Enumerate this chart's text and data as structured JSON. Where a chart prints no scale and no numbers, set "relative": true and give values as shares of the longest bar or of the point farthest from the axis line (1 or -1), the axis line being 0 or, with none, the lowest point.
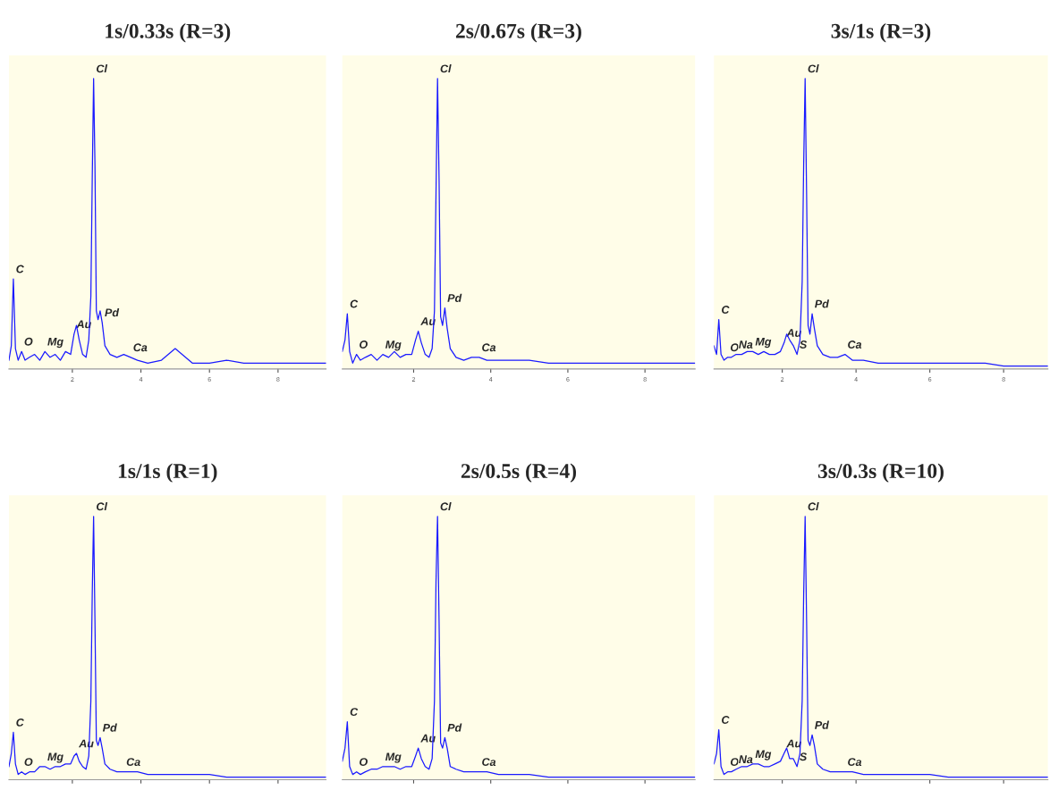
{
  "chart_data": [
    {
      "type": "line",
      "title": "1s/0.33s (R=3)",
      "relative": true,
      "tick_labels": "x",
      "xlim": [
        0.15,
        9.4
      ],
      "xticks": [
        2,
        4,
        6,
        8
      ],
      "x": [
        0.15,
        0.22,
        0.28,
        0.34,
        0.42,
        0.52,
        0.62,
        0.75,
        0.9,
        1.05,
        1.2,
        1.35,
        1.5,
        1.65,
        1.8,
        1.95,
        2.05,
        2.12,
        2.2,
        2.3,
        2.4,
        2.48,
        2.54,
        2.58,
        2.62,
        2.66,
        2.7,
        2.75,
        2.81,
        2.87,
        2.95,
        3.1,
        3.3,
        3.5,
        3.7,
        3.9,
        4.2,
        4.6,
        5.0,
        5.5,
        6.0,
        6.5,
        7.0,
        7.5,
        8.0,
        8.5,
        9.0,
        9.4
      ],
      "series": [
        {
          "color": "#1a1aff",
          "values": [
            0.03,
            0.08,
            0.31,
            0.07,
            0.03,
            0.06,
            0.03,
            0.04,
            0.05,
            0.03,
            0.06,
            0.04,
            0.05,
            0.03,
            0.06,
            0.05,
            0.12,
            0.15,
            0.1,
            0.05,
            0.04,
            0.1,
            0.25,
            0.65,
            1.0,
            0.7,
            0.2,
            0.17,
            0.2,
            0.16,
            0.08,
            0.05,
            0.04,
            0.05,
            0.04,
            0.03,
            0.02,
            0.03,
            0.07,
            0.02,
            0.02,
            0.03,
            0.02,
            0.02,
            0.02,
            0.02,
            0.02,
            0.02
          ]
        }
      ],
      "annotations": [
        {
          "text": "C",
          "x": 0.28,
          "y": 0.31
        },
        {
          "text": "O",
          "x": 0.52,
          "y": 0.06
        },
        {
          "text": "Mg",
          "x": 1.2,
          "y": 0.06
        },
        {
          "text": "Au",
          "x": 2.05,
          "y": 0.12
        },
        {
          "text": "Cl",
          "x": 2.62,
          "y": 1.0
        },
        {
          "text": "Pd",
          "x": 2.87,
          "y": 0.16
        },
        {
          "text": "Ca",
          "x": 3.7,
          "y": 0.04
        }
      ]
    },
    {
      "type": "line",
      "title": "2s/0.67s (R=3)",
      "relative": true,
      "tick_labels": "x",
      "xlim": [
        0.15,
        9.3
      ],
      "xticks": [
        2,
        4,
        6,
        8
      ],
      "x": [
        0.15,
        0.22,
        0.28,
        0.34,
        0.42,
        0.52,
        0.62,
        0.75,
        0.9,
        1.05,
        1.2,
        1.35,
        1.5,
        1.65,
        1.8,
        1.95,
        2.05,
        2.12,
        2.2,
        2.3,
        2.4,
        2.48,
        2.54,
        2.58,
        2.62,
        2.66,
        2.7,
        2.75,
        2.81,
        2.87,
        2.95,
        3.1,
        3.3,
        3.5,
        3.7,
        3.9,
        4.2,
        4.6,
        5.0,
        5.5,
        6.0,
        6.5,
        7.0,
        7.5,
        8.0,
        8.5,
        9.0,
        9.3
      ],
      "series": [
        {
          "color": "#1a1aff",
          "values": [
            0.06,
            0.1,
            0.19,
            0.06,
            0.02,
            0.05,
            0.03,
            0.04,
            0.05,
            0.03,
            0.05,
            0.04,
            0.06,
            0.04,
            0.05,
            0.05,
            0.1,
            0.13,
            0.09,
            0.05,
            0.04,
            0.07,
            0.2,
            0.6,
            1.0,
            0.65,
            0.18,
            0.15,
            0.21,
            0.14,
            0.07,
            0.04,
            0.03,
            0.04,
            0.04,
            0.03,
            0.03,
            0.03,
            0.03,
            0.02,
            0.02,
            0.02,
            0.02,
            0.02,
            0.02,
            0.02,
            0.02,
            0.02
          ]
        }
      ],
      "annotations": [
        {
          "text": "C",
          "x": 0.28,
          "y": 0.19
        },
        {
          "text": "O",
          "x": 0.52,
          "y": 0.05
        },
        {
          "text": "Mg",
          "x": 1.2,
          "y": 0.05
        },
        {
          "text": "Au",
          "x": 2.12,
          "y": 0.13
        },
        {
          "text": "Cl",
          "x": 2.62,
          "y": 1.0
        },
        {
          "text": "Pd",
          "x": 2.81,
          "y": 0.21
        },
        {
          "text": "Ca",
          "x": 3.7,
          "y": 0.04
        }
      ]
    },
    {
      "type": "line",
      "title": "3s/1s (R=3)",
      "relative": true,
      "tick_labels": "x",
      "xlim": [
        0.15,
        9.2
      ],
      "xticks": [
        2,
        4,
        6,
        8
      ],
      "x": [
        0.15,
        0.22,
        0.28,
        0.34,
        0.42,
        0.52,
        0.62,
        0.75,
        0.9,
        1.05,
        1.2,
        1.35,
        1.5,
        1.65,
        1.8,
        1.95,
        2.05,
        2.12,
        2.2,
        2.3,
        2.4,
        2.48,
        2.54,
        2.58,
        2.62,
        2.66,
        2.7,
        2.75,
        2.81,
        2.87,
        2.95,
        3.1,
        3.3,
        3.5,
        3.7,
        3.9,
        4.2,
        4.6,
        5.0,
        5.5,
        6.0,
        6.5,
        7.0,
        7.5,
        8.0,
        8.5,
        9.0,
        9.2
      ],
      "series": [
        {
          "color": "#1a1aff",
          "values": [
            0.08,
            0.05,
            0.17,
            0.05,
            0.03,
            0.04,
            0.04,
            0.05,
            0.05,
            0.06,
            0.06,
            0.05,
            0.06,
            0.05,
            0.05,
            0.06,
            0.09,
            0.12,
            0.1,
            0.08,
            0.05,
            0.1,
            0.3,
            0.7,
            1.0,
            0.6,
            0.15,
            0.12,
            0.19,
            0.14,
            0.08,
            0.05,
            0.04,
            0.04,
            0.05,
            0.03,
            0.03,
            0.02,
            0.02,
            0.02,
            0.02,
            0.02,
            0.02,
            0.02,
            0.01,
            0.01,
            0.01,
            0.01
          ]
        }
      ],
      "annotations": [
        {
          "text": "C",
          "x": 0.28,
          "y": 0.17
        },
        {
          "text": "O",
          "x": 0.52,
          "y": 0.04
        },
        {
          "text": "Na",
          "x": 0.75,
          "y": 0.05
        },
        {
          "text": "Mg",
          "x": 1.2,
          "y": 0.06
        },
        {
          "text": "Au",
          "x": 2.05,
          "y": 0.09
        },
        {
          "text": "S",
          "x": 2.4,
          "y": 0.05
        },
        {
          "text": "Cl",
          "x": 2.62,
          "y": 1.0
        },
        {
          "text": "Pd",
          "x": 2.81,
          "y": 0.19
        },
        {
          "text": "Ca",
          "x": 3.7,
          "y": 0.05
        }
      ]
    },
    {
      "type": "line",
      "title": "1s/1s (R=1)",
      "relative": true,
      "tick_labels": false,
      "xlim": [
        0.15,
        9.4
      ],
      "xticks": [
        {
          "value": 2,
          "label": null
        },
        {
          "value": 4,
          "label": null
        },
        {
          "value": 6,
          "label": null
        },
        {
          "value": 8,
          "label": null
        }
      ],
      "x": [
        0.15,
        0.22,
        0.28,
        0.34,
        0.42,
        0.52,
        0.62,
        0.75,
        0.9,
        1.05,
        1.2,
        1.35,
        1.5,
        1.65,
        1.8,
        1.95,
        2.05,
        2.12,
        2.2,
        2.3,
        2.4,
        2.48,
        2.54,
        2.58,
        2.62,
        2.66,
        2.7,
        2.75,
        2.81,
        2.87,
        2.95,
        3.1,
        3.3,
        3.5,
        3.7,
        3.9,
        4.2,
        4.6,
        5.0,
        5.5,
        6.0,
        6.5,
        7.0,
        7.5,
        8.0,
        8.5,
        9.0,
        9.4
      ],
      "series": [
        {
          "color": "#1a1aff",
          "values": [
            0.05,
            0.1,
            0.18,
            0.06,
            0.02,
            0.03,
            0.02,
            0.03,
            0.03,
            0.05,
            0.05,
            0.04,
            0.05,
            0.05,
            0.06,
            0.06,
            0.09,
            0.1,
            0.07,
            0.05,
            0.04,
            0.09,
            0.3,
            0.7,
            1.0,
            0.6,
            0.15,
            0.13,
            0.16,
            0.12,
            0.06,
            0.04,
            0.03,
            0.03,
            0.03,
            0.03,
            0.02,
            0.02,
            0.02,
            0.02,
            0.02,
            0.01,
            0.01,
            0.01,
            0.01,
            0.01,
            0.01,
            0.01
          ]
        }
      ],
      "annotations": [
        {
          "text": "C",
          "x": 0.28,
          "y": 0.18
        },
        {
          "text": "O",
          "x": 0.52,
          "y": 0.03
        },
        {
          "text": "Mg",
          "x": 1.2,
          "y": 0.05
        },
        {
          "text": "Au",
          "x": 2.12,
          "y": 0.1
        },
        {
          "text": "Cl",
          "x": 2.62,
          "y": 1.0
        },
        {
          "text": "Pd",
          "x": 2.81,
          "y": 0.16
        },
        {
          "text": "Ca",
          "x": 3.5,
          "y": 0.03
        }
      ]
    },
    {
      "type": "line",
      "title": "2s/0.5s (R=4)",
      "relative": true,
      "tick_labels": false,
      "xlim": [
        0.15,
        9.3
      ],
      "xticks": [
        {
          "value": 2,
          "label": null
        },
        {
          "value": 4,
          "label": null
        },
        {
          "value": 6,
          "label": null
        },
        {
          "value": 8,
          "label": null
        }
      ],
      "x": [
        0.15,
        0.22,
        0.28,
        0.34,
        0.42,
        0.52,
        0.62,
        0.75,
        0.9,
        1.05,
        1.2,
        1.35,
        1.5,
        1.65,
        1.8,
        1.95,
        2.05,
        2.12,
        2.2,
        2.3,
        2.4,
        2.48,
        2.54,
        2.58,
        2.62,
        2.66,
        2.7,
        2.75,
        2.81,
        2.87,
        2.95,
        3.1,
        3.3,
        3.5,
        3.7,
        3.9,
        4.2,
        4.6,
        5.0,
        5.5,
        6.0,
        6.5,
        7.0,
        7.5,
        8.0,
        8.5,
        9.0,
        9.3
      ],
      "series": [
        {
          "color": "#1a1aff",
          "values": [
            0.07,
            0.12,
            0.22,
            0.05,
            0.02,
            0.03,
            0.02,
            0.03,
            0.04,
            0.04,
            0.05,
            0.05,
            0.05,
            0.04,
            0.05,
            0.05,
            0.09,
            0.12,
            0.08,
            0.05,
            0.04,
            0.08,
            0.3,
            0.75,
            1.0,
            0.6,
            0.14,
            0.12,
            0.16,
            0.12,
            0.05,
            0.04,
            0.03,
            0.03,
            0.03,
            0.03,
            0.02,
            0.02,
            0.02,
            0.01,
            0.01,
            0.01,
            0.01,
            0.01,
            0.01,
            0.01,
            0.01,
            0.01
          ]
        }
      ],
      "annotations": [
        {
          "text": "C",
          "x": 0.28,
          "y": 0.22
        },
        {
          "text": "O",
          "x": 0.52,
          "y": 0.03
        },
        {
          "text": "Mg",
          "x": 1.2,
          "y": 0.05
        },
        {
          "text": "Au",
          "x": 2.12,
          "y": 0.12
        },
        {
          "text": "Cl",
          "x": 2.62,
          "y": 1.0
        },
        {
          "text": "Pd",
          "x": 2.81,
          "y": 0.16
        },
        {
          "text": "Ca",
          "x": 3.7,
          "y": 0.03
        }
      ]
    },
    {
      "type": "line",
      "title": "3s/0.3s (R=10)",
      "relative": true,
      "tick_labels": false,
      "xlim": [
        0.15,
        9.2
      ],
      "xticks": [
        {
          "value": 2,
          "label": null
        },
        {
          "value": 4,
          "label": null
        },
        {
          "value": 6,
          "label": null
        },
        {
          "value": 8,
          "label": null
        }
      ],
      "x": [
        0.15,
        0.22,
        0.28,
        0.34,
        0.42,
        0.52,
        0.62,
        0.75,
        0.9,
        1.05,
        1.2,
        1.35,
        1.5,
        1.65,
        1.8,
        1.95,
        2.05,
        2.12,
        2.2,
        2.3,
        2.4,
        2.48,
        2.54,
        2.58,
        2.62,
        2.66,
        2.7,
        2.75,
        2.81,
        2.87,
        2.95,
        3.1,
        3.3,
        3.5,
        3.7,
        3.9,
        4.2,
        4.6,
        5.0,
        5.5,
        6.0,
        6.5,
        7.0,
        7.5,
        8.0,
        8.5,
        9.0,
        9.2
      ],
      "series": [
        {
          "color": "#1a1aff",
          "values": [
            0.06,
            0.1,
            0.19,
            0.05,
            0.02,
            0.03,
            0.03,
            0.04,
            0.05,
            0.05,
            0.06,
            0.06,
            0.05,
            0.05,
            0.06,
            0.07,
            0.1,
            0.12,
            0.08,
            0.08,
            0.05,
            0.1,
            0.3,
            0.7,
            1.0,
            0.6,
            0.15,
            0.13,
            0.17,
            0.13,
            0.06,
            0.04,
            0.03,
            0.03,
            0.03,
            0.03,
            0.02,
            0.02,
            0.02,
            0.02,
            0.02,
            0.01,
            0.01,
            0.01,
            0.01,
            0.01,
            0.01,
            0.01
          ]
        }
      ],
      "annotations": [
        {
          "text": "C",
          "x": 0.28,
          "y": 0.19
        },
        {
          "text": "O",
          "x": 0.52,
          "y": 0.03
        },
        {
          "text": "Na",
          "x": 0.75,
          "y": 0.04
        },
        {
          "text": "Mg",
          "x": 1.2,
          "y": 0.06
        },
        {
          "text": "Au",
          "x": 2.05,
          "y": 0.1
        },
        {
          "text": "S",
          "x": 2.4,
          "y": 0.05
        },
        {
          "text": "Cl",
          "x": 2.62,
          "y": 1.0
        },
        {
          "text": "Pd",
          "x": 2.81,
          "y": 0.17
        },
        {
          "text": "Ca",
          "x": 3.7,
          "y": 0.03
        }
      ]
    }
  ]
}
